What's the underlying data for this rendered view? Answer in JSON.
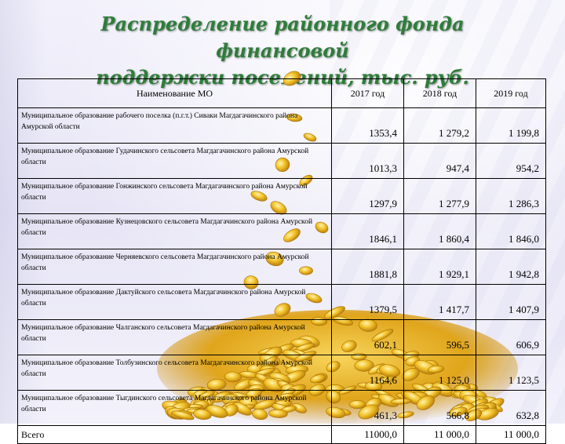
{
  "slide": {
    "title_line1": "Распределение районного фонда финансовой",
    "title_line2": "поддержки поселений, тыс. руб."
  },
  "table": {
    "headers": [
      "Наименование МО",
      "2017 год",
      "2018 год",
      "2019 год"
    ],
    "rows": [
      {
        "name": "Муниципальное образование рабочего поселка (п.г.т.) Сиваки Магдагачинского района Амурской области",
        "y2017": "1353,4",
        "y2018": "1 279,2",
        "y2019": "1 199,8"
      },
      {
        "name": "Муниципальное образование Гудачинского сельсовета Магдагачинского района Амурской области",
        "y2017": "1013,3",
        "y2018": "947,4",
        "y2019": "954,2"
      },
      {
        "name": "Муниципальное образование Гонжинского сельсовета Магдагачинского района Амурской области",
        "y2017": "1297,9",
        "y2018": "1 277,9",
        "y2019": "1 286,3"
      },
      {
        "name": "Муниципальное образование Кузнецовского сельсовета Магдагачинского района Амурской области",
        "y2017": "1846,1",
        "y2018": "1 860,4",
        "y2019": "1 846,0"
      },
      {
        "name": "Муниципальное образование Черняевского сельсовета Магдагачинского района Амурской области",
        "y2017": "1881,8",
        "y2018": "1 929,1",
        "y2019": "1 942,8"
      },
      {
        "name": "Муниципальное образование Дактуйского сельсовета Магдагачинского района Амурской области",
        "y2017": "1379,5",
        "y2018": "1 417,7",
        "y2019": "1 407,9"
      },
      {
        "name": "Муниципальное образование Чалганского сельсовета Магдагачинского района Амурской области",
        "y2017": "602,1",
        "y2018": "596,5",
        "y2019": "606,9"
      },
      {
        "name": "Муниципальное образование Толбузинского сельсовета Магдагачинского района Амурской области",
        "y2017": "1164,6",
        "y2018": "1 125,0",
        "y2019": "1 123,5"
      },
      {
        "name": "Муниципальное образование Тыгдинского сельсовета Магдагачинского района Амурской области",
        "y2017": "461,3",
        "y2018": "566,8",
        "y2019": "632,8"
      }
    ],
    "total": {
      "name": "Всего",
      "y2017": "11000,0",
      "y2018": "11 000,0",
      "y2019": "11 000,0"
    }
  },
  "colors": {
    "title": "#2e7d3a",
    "coin": "#e9b31c",
    "background": "#ecebf7"
  }
}
